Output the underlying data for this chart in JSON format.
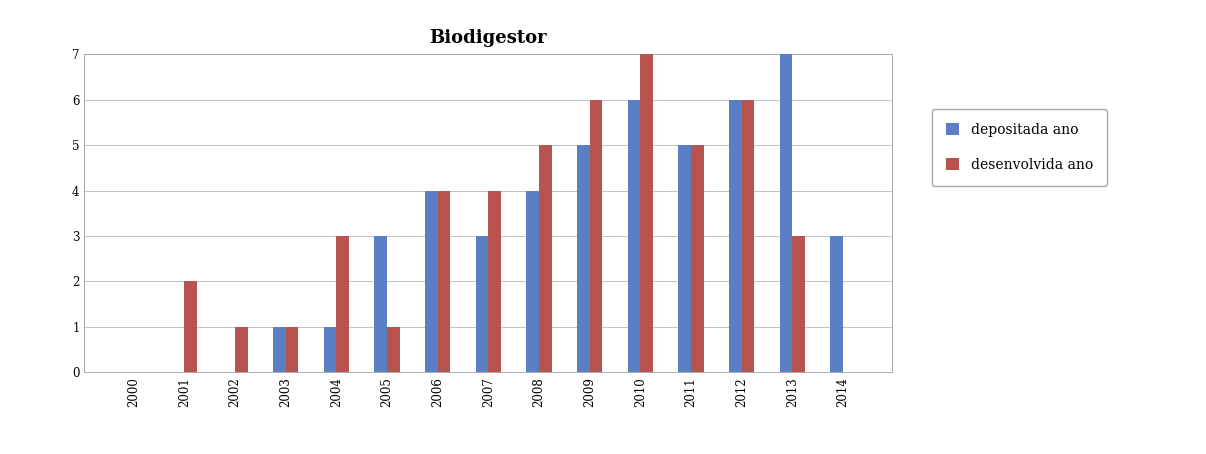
{
  "title": "Biodigestor",
  "years": [
    "2000",
    "2001",
    "2002",
    "2003",
    "2004",
    "2005",
    "2006",
    "2007",
    "2008",
    "2009",
    "2010",
    "2011",
    "2012",
    "2013",
    "2014"
  ],
  "depositada": [
    0,
    0,
    0,
    1,
    1,
    3,
    4,
    3,
    4,
    5,
    6,
    5,
    6,
    7,
    3
  ],
  "desenvolvida": [
    0,
    2,
    1,
    1,
    3,
    1,
    4,
    4,
    5,
    6,
    7,
    5,
    6,
    3,
    0
  ],
  "color_depositada": "#5B7FC4",
  "color_desenvolvida": "#B85450",
  "legend_depositada": "depositada ano",
  "legend_desenvolvida": "desenvolvida ano",
  "ylim": [
    0,
    7
  ],
  "yticks": [
    0,
    1,
    2,
    3,
    4,
    5,
    6,
    7
  ],
  "background_color": "#FFFFFF",
  "plot_background": "#FFFFFF",
  "title_fontsize": 13,
  "title_fontweight": "bold",
  "bar_width": 0.25,
  "grid_color": "#AAAAAA",
  "grid_linewidth": 0.5,
  "tick_fontsize": 8.5,
  "legend_fontsize": 10
}
